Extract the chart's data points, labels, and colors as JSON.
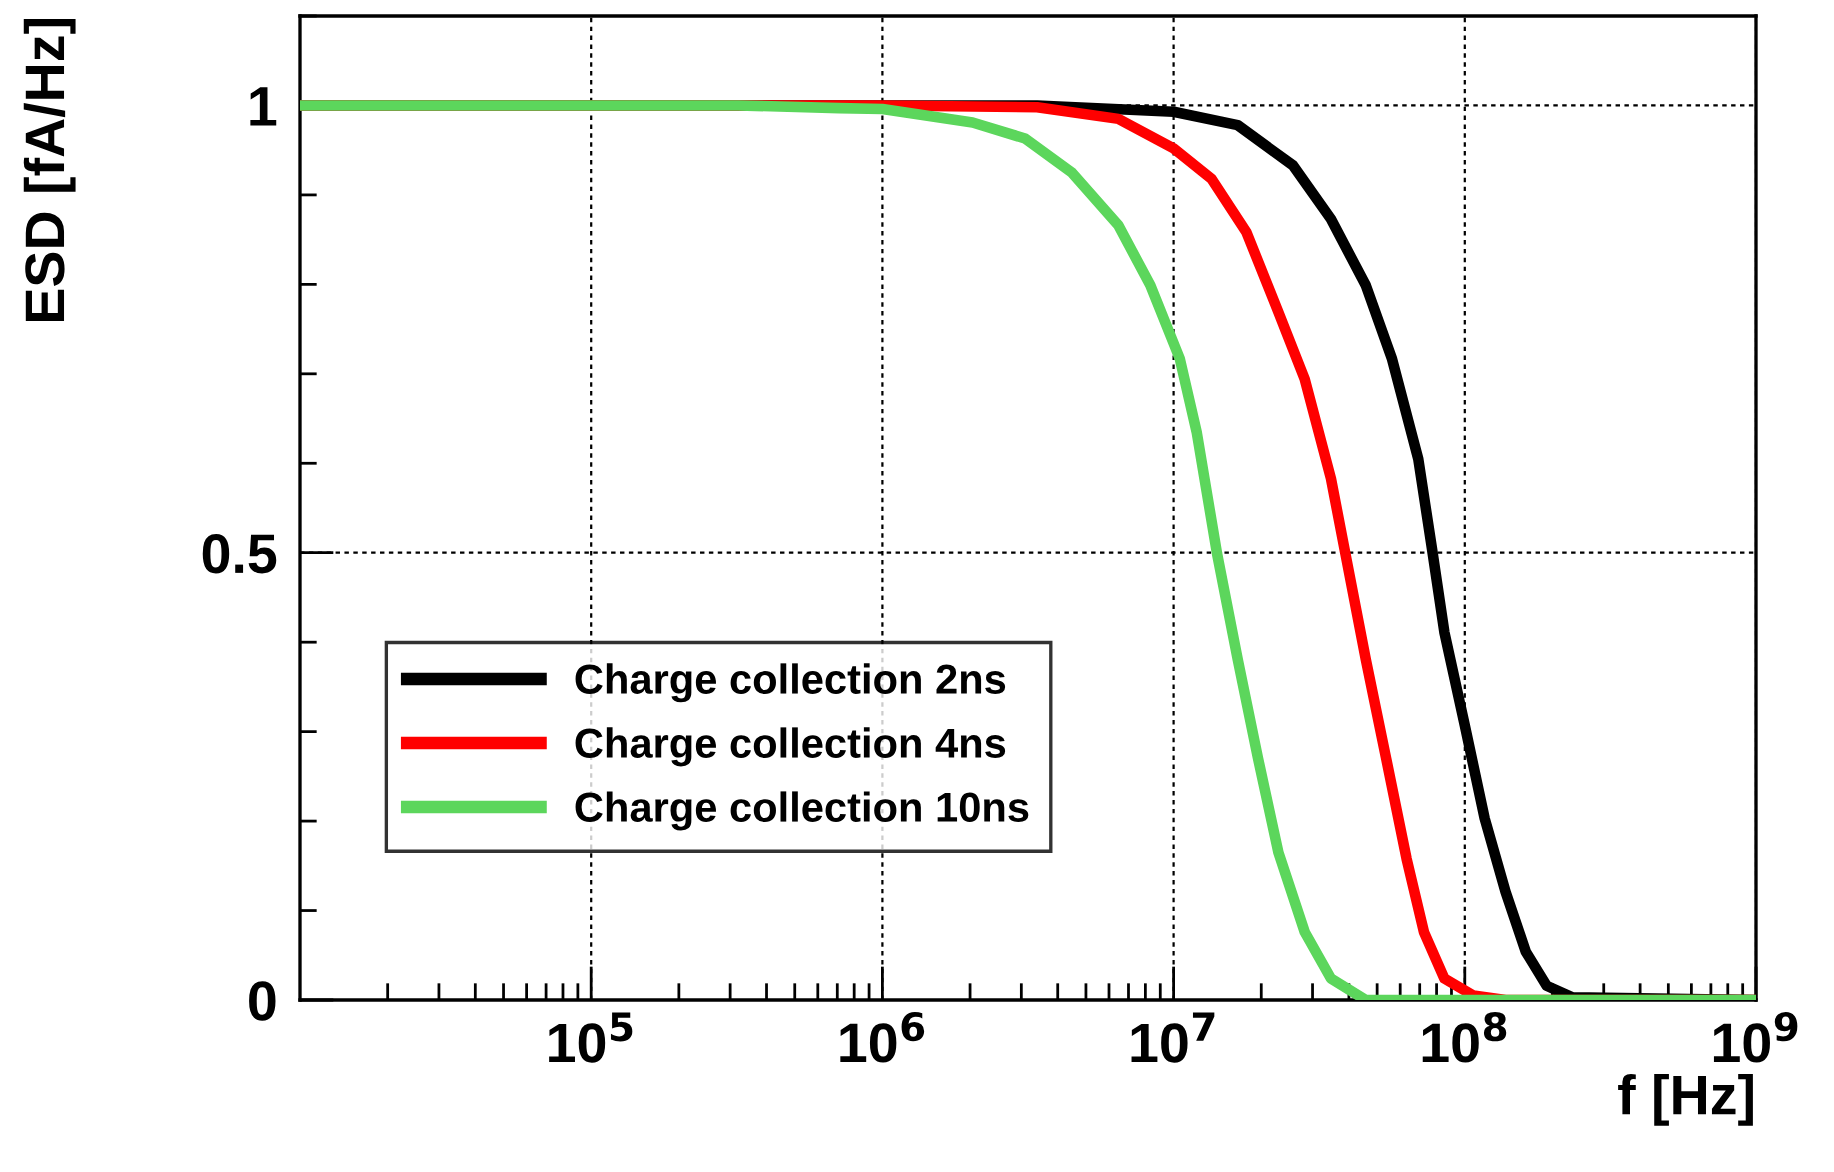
{
  "chart_data": {
    "type": "line",
    "xlabel": "f [Hz]",
    "ylabel": "ESD [fA/Hz]",
    "log": "x",
    "xlim": [
      10000.0,
      1000000000.0
    ],
    "xticks": [
      {
        "value": 100000.0,
        "label": "10$^{5}$"
      },
      {
        "value": 1000000.0,
        "label": "10$^{6}$"
      },
      {
        "value": 10000000.0,
        "label": "10$^{7}$"
      },
      {
        "value": 100000000.0,
        "label": "10$^{8}$"
      },
      {
        "value": 1000000000.0,
        "label": "10$^{9}$"
      }
    ],
    "ylim": [
      0,
      1.1
    ],
    "yticks": [
      0,
      0.5,
      1
    ],
    "grid": true,
    "legend": "bottom left",
    "line_style": "solid",
    "marker": "none",
    "series": [
      {
        "name": "Charge collection 2ns",
        "color": "#000000",
        "x": [
          10000.0,
          3400000.0,
          10000000.0,
          16600000.0,
          25700000.0,
          34700000.0,
          45700000.0,
          56200000.0,
          69200000.0,
          77600000.0,
          85100000.0,
          100000000.0,
          117000000.0,
          138000000.0,
          162000000.0,
          191000000.0,
          234000000.0,
          1000000000.0
        ],
        "values": [
          1.0,
          1.0,
          0.993,
          0.978,
          0.933,
          0.873,
          0.799,
          0.717,
          0.605,
          0.499,
          0.411,
          0.307,
          0.203,
          0.121,
          0.054,
          0.016,
          0.003,
          0.0
        ]
      },
      {
        "name": "Charge collection 4ns",
        "color": "#ff0000",
        "x": [
          10000.0,
          1000000.0,
          3400000.0,
          6460000.0,
          10000000.0,
          13500000.0,
          17800000.0,
          22900000.0,
          28200000.0,
          34700000.0,
          38900000.0,
          45700000.0,
          53700000.0,
          63100000.0,
          72400000.0,
          85100000.0,
          107000000.0,
          138000000.0,
          1000000000.0
        ],
        "values": [
          1.0,
          1.0,
          0.998,
          0.985,
          0.952,
          0.918,
          0.858,
          0.769,
          0.694,
          0.583,
          0.499,
          0.381,
          0.27,
          0.158,
          0.076,
          0.024,
          0.005,
          0.0,
          0.0
        ]
      },
      {
        "name": "Charge collection 10ns",
        "color": "#5cd65c",
        "x": [
          10000.0,
          320000.0,
          710000.0,
          1000000.0,
          2040000.0,
          3090000.0,
          4470000.0,
          6460000.0,
          8320000.0,
          10500000.0,
          12000000.0,
          14100000.0,
          16600000.0,
          19500000.0,
          22900000.0,
          28200000.0,
          34700000.0,
          45700000.0,
          1000000000.0
        ],
        "values": [
          1.0,
          1.0,
          0.997,
          0.996,
          0.981,
          0.963,
          0.925,
          0.866,
          0.799,
          0.717,
          0.635,
          0.499,
          0.381,
          0.27,
          0.165,
          0.076,
          0.024,
          0.0,
          0.0
        ]
      }
    ]
  }
}
